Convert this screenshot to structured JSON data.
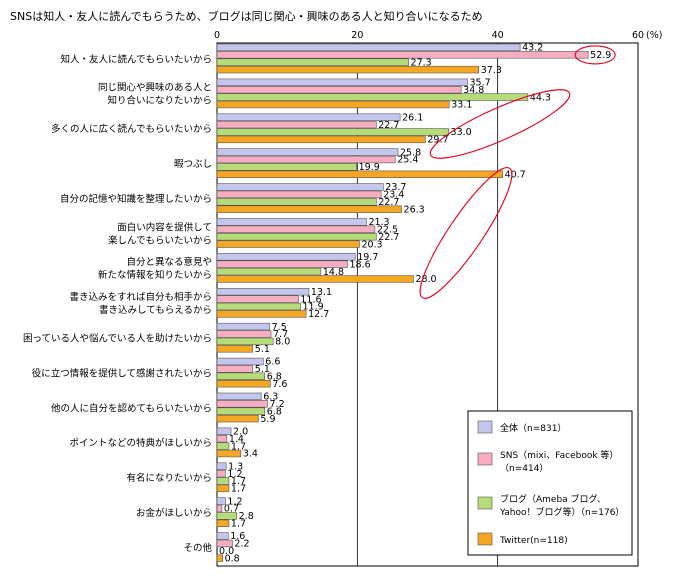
{
  "chart_data": {
    "type": "bar",
    "orientation": "horizontal",
    "title": "SNSは知人・友人に読んでもらうため、ブログは同じ関心・興味のある人と知り合いになるため",
    "xaxis": {
      "ticks": [
        "0",
        "20",
        "40",
        "60"
      ],
      "unit": "(%)",
      "xlim": [
        0,
        60
      ]
    },
    "categories": [
      [
        "知人・友人に読んでもらいたいから"
      ],
      [
        "同じ関心や興味のある人と",
        "知り合いになりたいから"
      ],
      [
        "多くの人に広く読んでもらいたいから"
      ],
      [
        "暇つぶし"
      ],
      [
        "自分の記憶や知識を整理したいから"
      ],
      [
        "面白い内容を提供して",
        "楽しんでもらいたいから"
      ],
      [
        "自分と異なる意見や",
        "新たな情報を知りたいから"
      ],
      [
        "書き込みをすれば自分も相手から",
        "書き込みしてもらえるから"
      ],
      [
        "困っている人や悩んでいる人を助けたいから"
      ],
      [
        "役に立つ情報を提供して感謝されたいから"
      ],
      [
        "他の人に自分を認めてもらいたいから"
      ],
      [
        "ポイントなどの特典がほしいから"
      ],
      [
        "有名になりたいから"
      ],
      [
        "お金がほしいから"
      ],
      [
        "その他"
      ]
    ],
    "series": [
      {
        "name": "全体（n=831）",
        "color": "#c4c6ee",
        "values": [
          43.2,
          35.7,
          26.1,
          25.8,
          23.7,
          21.3,
          19.7,
          13.1,
          7.5,
          6.6,
          6.3,
          2.0,
          1.3,
          1.2,
          1.6
        ]
      },
      {
        "name": "SNS（mixi、Facebook 等）（n=414）",
        "color": "#f6aec0",
        "values": [
          52.9,
          34.8,
          22.7,
          25.4,
          23.4,
          22.5,
          18.6,
          11.6,
          7.7,
          5.1,
          7.2,
          1.4,
          1.2,
          0.7,
          2.2
        ]
      },
      {
        "name": "ブログ（Ameba ブログ、Yahoo！ブログ等）（n=176）",
        "color": "#b6dc7a",
        "values": [
          27.3,
          44.3,
          33.0,
          19.9,
          22.7,
          22.7,
          14.8,
          11.9,
          8.0,
          6.8,
          6.8,
          1.7,
          1.7,
          2.8,
          0.0
        ]
      },
      {
        "name": "Twitter（n=118）",
        "color": "#f5a623",
        "values": [
          37.3,
          33.1,
          29.7,
          40.7,
          26.3,
          20.3,
          28.0,
          12.7,
          5.1,
          7.6,
          5.9,
          3.4,
          1.7,
          1.7,
          0.8
        ]
      }
    ],
    "value_labels": [
      [
        "43.2",
        "52.9",
        "27.3",
        "37.3"
      ],
      [
        "35.7",
        "34.8",
        "44.3",
        "33.1"
      ],
      [
        "26.1",
        "22.7",
        "33.0",
        "29.7"
      ],
      [
        "25.8",
        "25.4",
        "19.9",
        "40.7"
      ],
      [
        "23.7",
        "23.4",
        "22.7",
        "26.3"
      ],
      [
        "21.3",
        "22.5",
        "22.7",
        "20.3"
      ],
      [
        "19.7",
        "18.6",
        "14.8",
        "28.0"
      ],
      [
        "13.1",
        "11.6",
        "11.9",
        "12.7"
      ],
      [
        "7.5",
        "7.7",
        "8.0",
        "5.1"
      ],
      [
        "6.6",
        "5.1",
        "6.8",
        "7.6"
      ],
      [
        "6.3",
        "7.2",
        "6.8",
        "5.9"
      ],
      [
        "2.0",
        "1.4",
        "1.7",
        "3.4"
      ],
      [
        "1.3",
        "1.2",
        "1.7",
        "1.7"
      ],
      [
        "1.2",
        "0.7",
        "2.8",
        "1.7"
      ],
      [
        "1.6",
        "2.2",
        "0.0",
        "0.8"
      ]
    ],
    "legend": {
      "position": "bottom-right",
      "entries": [
        [
          "全体（n=831）"
        ],
        [
          "SNS（mixi、Facebook 等）",
          "（n=414）"
        ],
        [
          "ブログ（Ameba ブログ、",
          "Yahoo！ブログ等）（n=176）"
        ],
        [
          "Twitter(n=118)"
        ]
      ]
    },
    "highlight_ellipses": "red outlines around SNS 52.9, blog 44.3 / 33.0, Twitter 40.7 / 28.0"
  }
}
